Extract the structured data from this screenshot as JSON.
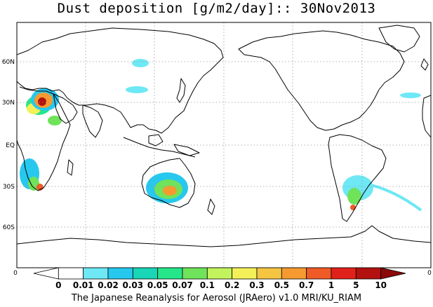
{
  "title": "Dust deposition [g/m2/day]:: 30Nov2013",
  "footer": "The Japanese Reanalysis for Aerosol (JRAero) v1.0 MRI/KU_RIAM",
  "latitude_labels": [
    "60N",
    "30N",
    "EQ",
    "30S",
    "60S"
  ],
  "axis_end_labels": {
    "left": "0",
    "right": "0"
  },
  "colorbar": {
    "labels": [
      "0",
      "0.01",
      "0.02",
      "0.03",
      "0.05",
      "0.07",
      "0.1",
      "0.2",
      "0.3",
      "0.5",
      "0.7",
      "1",
      "5",
      "10"
    ],
    "colors": [
      "#ffffff",
      "#ffffff",
      "#6ee8f5",
      "#27c8ee",
      "#18d6b6",
      "#26e68a",
      "#6fe35a",
      "#c3f35c",
      "#f3f05a",
      "#f5c542",
      "#f59a30",
      "#ef5a26",
      "#e0211a",
      "#b3110f",
      "#8a0a0a"
    ]
  }
}
